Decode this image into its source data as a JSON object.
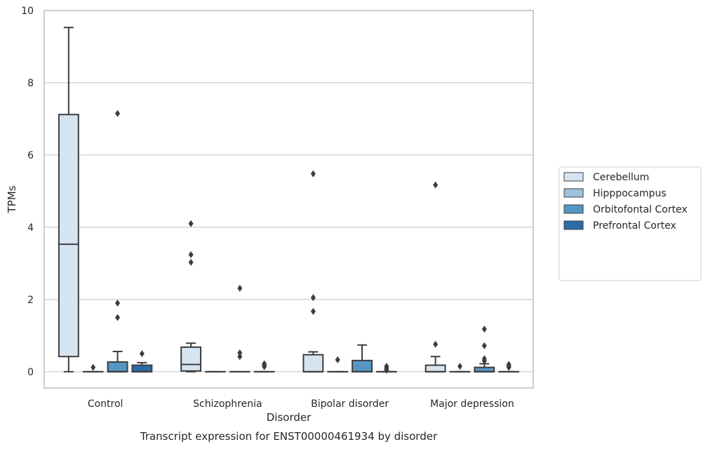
{
  "chart_data": {
    "type": "box",
    "title": "",
    "caption": "Transcript expression for ENST00000461934 by disorder",
    "xlabel": "Disorder",
    "ylabel": "TPMs",
    "ylim": [
      -0.45,
      10
    ],
    "yticks": [
      0,
      2,
      4,
      6,
      8,
      10
    ],
    "grid": "horizontal",
    "legend_position": "right",
    "categories": [
      "Control",
      "Schizophrenia",
      "Bipolar disorder",
      "Major depression"
    ],
    "series": [
      {
        "name": "Cerebellum",
        "color": "#d6e4f2",
        "boxes": [
          {
            "q1": 0.42,
            "median": 3.53,
            "q3": 7.12,
            "whisker_low": 0.0,
            "whisker_high": 9.53,
            "outliers": []
          },
          {
            "q1": 0.02,
            "median": 0.2,
            "q3": 0.68,
            "whisker_low": 0.0,
            "whisker_high": 0.79,
            "outliers": [
              4.1,
              3.24,
              3.03
            ]
          },
          {
            "q1": 0.0,
            "median": 0.0,
            "q3": 0.47,
            "whisker_low": 0.0,
            "whisker_high": 0.55,
            "outliers": [
              5.48,
              2.05,
              1.67
            ]
          },
          {
            "q1": 0.0,
            "median": 0.0,
            "q3": 0.18,
            "whisker_low": 0.0,
            "whisker_high": 0.42,
            "outliers": [
              5.17,
              0.76
            ]
          }
        ]
      },
      {
        "name": "Hipppocampus",
        "color": "#9cc3de",
        "boxes": [
          {
            "q1": 0.0,
            "median": 0.0,
            "q3": 0.0,
            "whisker_low": 0.0,
            "whisker_high": 0.0,
            "outliers": [
              0.12
            ]
          },
          {
            "q1": 0.0,
            "median": 0.0,
            "q3": 0.0,
            "whisker_low": 0.0,
            "whisker_high": 0.0,
            "outliers": []
          },
          {
            "q1": 0.0,
            "median": 0.0,
            "q3": 0.0,
            "whisker_low": 0.0,
            "whisker_high": 0.0,
            "outliers": [
              0.33
            ]
          },
          {
            "q1": 0.0,
            "median": 0.0,
            "q3": 0.0,
            "whisker_low": 0.0,
            "whisker_high": 0.0,
            "outliers": [
              0.15
            ]
          }
        ]
      },
      {
        "name": "Orbitofontal Cortex",
        "color": "#5696c4",
        "boxes": [
          {
            "q1": 0.0,
            "median": 0.0,
            "q3": 0.27,
            "whisker_low": 0.0,
            "whisker_high": 0.56,
            "outliers": [
              7.15,
              1.9,
              1.5
            ]
          },
          {
            "q1": 0.0,
            "median": 0.0,
            "q3": 0.0,
            "whisker_low": 0.0,
            "whisker_high": 0.0,
            "outliers": [
              2.31,
              0.52,
              0.42
            ]
          },
          {
            "q1": 0.0,
            "median": 0.0,
            "q3": 0.31,
            "whisker_low": 0.0,
            "whisker_high": 0.74,
            "outliers": []
          },
          {
            "q1": 0.0,
            "median": 0.0,
            "q3": 0.12,
            "whisker_low": 0.0,
            "whisker_high": 0.22,
            "outliers": [
              1.18,
              0.72,
              0.36,
              0.3
            ]
          }
        ]
      },
      {
        "name": "Prefrontal Cortex",
        "color": "#2c6ba8",
        "boxes": [
          {
            "q1": 0.0,
            "median": 0.0,
            "q3": 0.18,
            "whisker_low": 0.0,
            "whisker_high": 0.25,
            "outliers": [
              0.5
            ]
          },
          {
            "q1": 0.0,
            "median": 0.0,
            "q3": 0.0,
            "whisker_low": 0.0,
            "whisker_high": 0.0,
            "outliers": [
              0.22,
              0.18,
              0.14
            ]
          },
          {
            "q1": 0.0,
            "median": 0.0,
            "q3": 0.0,
            "whisker_low": 0.0,
            "whisker_high": 0.0,
            "outliers": [
              0.15,
              0.1,
              0.06,
              0.04
            ]
          },
          {
            "q1": 0.0,
            "median": 0.0,
            "q3": 0.0,
            "whisker_low": 0.0,
            "whisker_high": 0.0,
            "outliers": [
              0.2,
              0.15,
              0.12
            ]
          }
        ]
      }
    ]
  }
}
